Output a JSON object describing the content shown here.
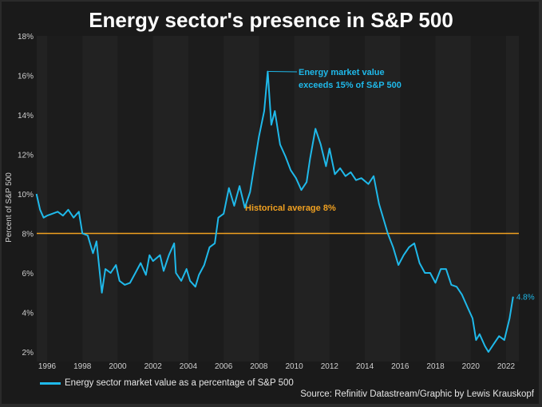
{
  "title": "Energy sector's presence in S&P 500",
  "source": "Source: Refinitiv Datastream/Graphic by Lewis Krauskopf",
  "colors": {
    "line": "#1fb9ea",
    "average": "#f0a020",
    "background": "#1a1a1a",
    "band": "#222222"
  },
  "chart_data": {
    "type": "line",
    "title": "Energy sector's presence in S&P 500",
    "ylabel": "Percent of S&P 500",
    "xlabel": "",
    "ylim": [
      2,
      18
    ],
    "yticks": [
      "2%",
      "4%",
      "6%",
      "8%",
      "10%",
      "12%",
      "14%",
      "16%",
      "18%"
    ],
    "xticks": [
      "1996",
      "1998",
      "2000",
      "2002",
      "2004",
      "2006",
      "2008",
      "2010",
      "2012",
      "2014",
      "2016",
      "2018",
      "2020",
      "2022"
    ],
    "grid": false,
    "legend_position": "bottom-left",
    "series": [
      {
        "name": "Energy sector market value as a percentage of S&P 500",
        "x": [
          1995.4,
          1995.6,
          1995.8,
          1996.0,
          1996.3,
          1996.6,
          1996.9,
          1997.2,
          1997.5,
          1997.8,
          1998.0,
          1998.3,
          1998.6,
          1998.8,
          1999.1,
          1999.3,
          1999.6,
          1999.9,
          2000.1,
          2000.4,
          2000.7,
          2001.0,
          2001.3,
          2001.6,
          2001.8,
          2002.0,
          2002.4,
          2002.6,
          2002.9,
          2003.2,
          2003.3,
          2003.6,
          2003.9,
          2004.1,
          2004.4,
          2004.6,
          2004.9,
          2005.2,
          2005.5,
          2005.7,
          2006.0,
          2006.3,
          2006.6,
          2006.9,
          2007.2,
          2007.5,
          2007.8,
          2008.0,
          2008.3,
          2008.5,
          2008.7,
          2008.9,
          2009.2,
          2009.5,
          2009.8,
          2010.1,
          2010.4,
          2010.7,
          2010.9,
          2011.2,
          2011.5,
          2011.8,
          2012.0,
          2012.3,
          2012.6,
          2012.9,
          2013.2,
          2013.5,
          2013.8,
          2014.2,
          2014.5,
          2014.8,
          2015.1,
          2015.3,
          2015.6,
          2015.9,
          2016.2,
          2016.5,
          2016.8,
          2017.1,
          2017.4,
          2017.7,
          2018.0,
          2018.3,
          2018.6,
          2018.9,
          2019.2,
          2019.5,
          2019.8,
          2020.1,
          2020.3,
          2020.5,
          2020.8,
          2021.0,
          2021.3,
          2021.6,
          2021.9,
          2022.2,
          2022.4
        ],
        "values": [
          10.0,
          9.2,
          8.8,
          8.9,
          9.0,
          9.1,
          8.9,
          9.2,
          8.8,
          9.1,
          8.0,
          7.9,
          7.0,
          7.6,
          5.0,
          6.2,
          6.0,
          6.4,
          5.6,
          5.4,
          5.5,
          6.0,
          6.5,
          5.9,
          6.9,
          6.6,
          6.9,
          6.1,
          6.9,
          7.5,
          6.0,
          5.6,
          6.2,
          5.6,
          5.3,
          5.9,
          6.4,
          7.3,
          7.5,
          8.8,
          9.0,
          10.3,
          9.4,
          10.4,
          9.3,
          10.1,
          11.8,
          12.9,
          14.2,
          16.2,
          13.5,
          14.2,
          12.5,
          11.9,
          11.2,
          10.8,
          10.2,
          10.6,
          11.8,
          13.3,
          12.5,
          11.4,
          12.3,
          11.0,
          11.3,
          10.9,
          11.1,
          10.7,
          10.8,
          10.5,
          10.9,
          9.5,
          8.6,
          8.0,
          7.3,
          6.4,
          6.9,
          7.3,
          7.5,
          6.5,
          6.0,
          6.0,
          5.5,
          6.2,
          6.2,
          5.4,
          5.3,
          4.9,
          4.3,
          3.7,
          2.6,
          2.9,
          2.3,
          2.0,
          2.4,
          2.8,
          2.6,
          3.7,
          4.8
        ]
      }
    ],
    "reference_line": {
      "value": 8,
      "label": "Historical average 8%"
    },
    "annotations": [
      {
        "text_line1": "Energy market value",
        "text_line2": "exceeds 15% of S&P 500",
        "x": 2008.5,
        "y": 16.2
      },
      {
        "text": "4.8%",
        "x": 2022.4,
        "y": 4.8
      }
    ]
  }
}
